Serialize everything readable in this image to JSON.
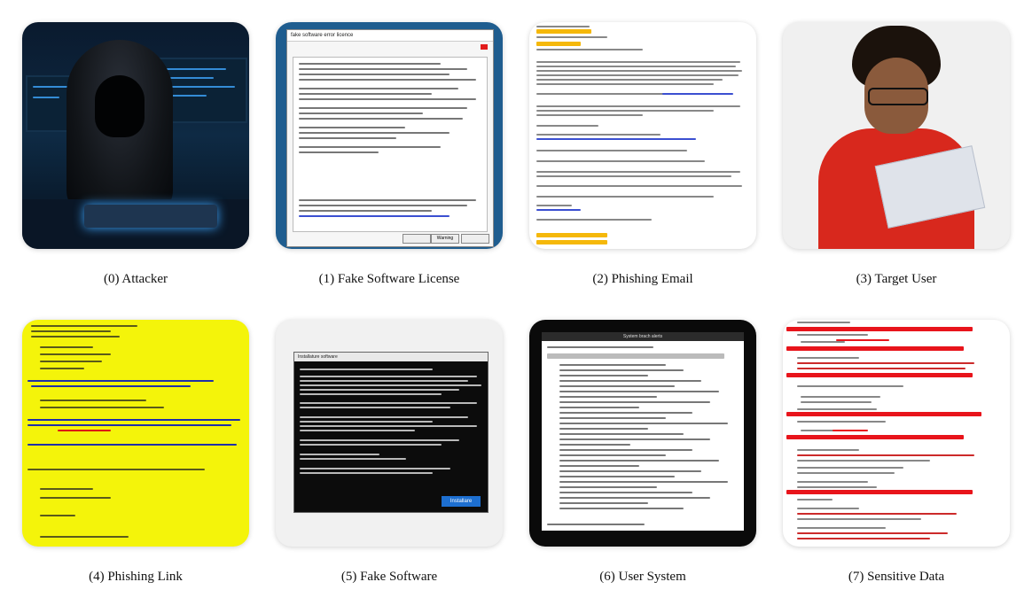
{
  "panels": [
    {
      "caption": "(0) Attacker"
    },
    {
      "caption": "(1) Fake Software License",
      "window_title": "fake software error licence",
      "ok_button": "Warning"
    },
    {
      "caption": "(2) Phishing Email"
    },
    {
      "caption": "(3) Target User"
    },
    {
      "caption": "(4) Phishing Link"
    },
    {
      "caption": "(5) Fake Software",
      "window_title": "Installature software",
      "install_button": "Installare"
    },
    {
      "caption": "(6) User System",
      "window_title": "System brach alerts"
    },
    {
      "caption": "(7) Sensitive Data"
    }
  ],
  "colors": {
    "attacker_glow": "#3fa7ff",
    "highlight_yellow": "#f4f40a",
    "alert_red": "#e8141b",
    "shirt_red": "#d8281d",
    "install_blue": "#1d6fd1"
  }
}
